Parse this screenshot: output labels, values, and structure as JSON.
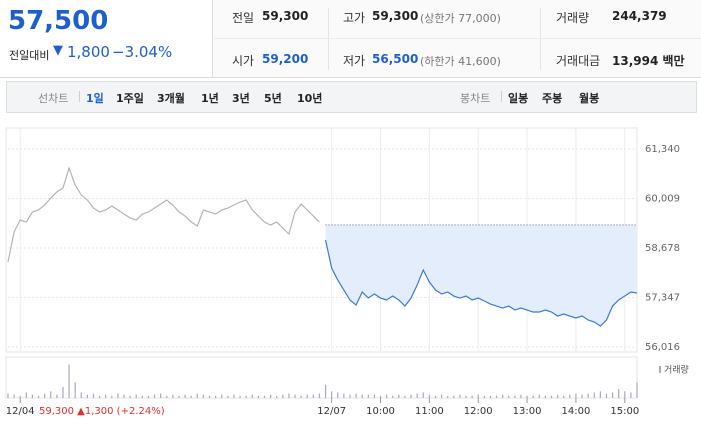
{
  "header": {
    "price": "57,500",
    "change_label": "전일대비",
    "change": "1,800",
    "change_rate": "−3.04%",
    "stats": [
      {
        "label": "전일",
        "value": "59,300"
      },
      {
        "label": "고가",
        "value": "59,300",
        "note": "(상한가 77,000)"
      },
      {
        "label": "거래량",
        "value": "244,379"
      },
      {
        "label": "시가",
        "value": "59,200"
      },
      {
        "label": "저가",
        "value": "56,500",
        "note": "(하한가 41,600)"
      },
      {
        "label": "거래대금",
        "value": "13,994 백만"
      }
    ]
  },
  "tabs": {
    "line_label": "선차트",
    "periods": [
      "1일",
      "1주일",
      "3개월",
      "1년",
      "3년",
      "5년",
      "10년"
    ],
    "candle_label": "봉차트",
    "candles": [
      "일봉",
      "주봉",
      "월봉"
    ]
  },
  "chart_data": [
    {
      "type": "line",
      "categories": [
        null,
        null,
        "12/04",
        null,
        null,
        null,
        null,
        null,
        null,
        null,
        null,
        null,
        null,
        null,
        null,
        null,
        null,
        null,
        null,
        null,
        null,
        null,
        null,
        null,
        null,
        null,
        null,
        null,
        null,
        null,
        null,
        null,
        null,
        null,
        null,
        null,
        null,
        null,
        null,
        null,
        null,
        null,
        null,
        null,
        null,
        null,
        null,
        null,
        null,
        null,
        null,
        null,
        null,
        "12/07",
        null,
        null,
        null,
        null,
        null,
        null,
        null,
        "10:00",
        null,
        null,
        null,
        null,
        null,
        null,
        null,
        "11:00",
        null,
        null,
        null,
        null,
        null,
        null,
        null,
        "12:00",
        null,
        null,
        null,
        null,
        null,
        null,
        null,
        "13:00",
        null,
        null,
        null,
        null,
        null,
        null,
        null,
        "14:00",
        null,
        null,
        null,
        null,
        null,
        null,
        null,
        "15:00",
        null,
        null
      ],
      "series": [
        {
          "color": "#b4b4b4",
          "values": [
            58301,
            59108,
            59431,
            59377,
            59646,
            59700,
            59834,
            60022,
            60184,
            60291,
            60829,
            60372,
            60103,
            59969,
            59753,
            59646,
            59700,
            59807,
            59700,
            59592,
            59485,
            59431,
            59592,
            59646,
            59753,
            59861,
            59969,
            59834,
            59646,
            59538,
            59377,
            59270,
            59700,
            59646,
            59592,
            59700,
            59753,
            59834,
            59915,
            59969,
            59700,
            59538,
            59377,
            59296,
            59377,
            59216,
            59054,
            59646,
            59861,
            59700,
            59538,
            59377,
            null,
            null,
            null,
            null,
            null,
            null,
            null,
            null,
            null,
            null,
            null,
            null,
            null,
            null,
            null,
            null,
            null,
            null,
            null,
            null,
            null,
            null,
            null,
            null,
            null,
            null,
            null,
            null,
            null,
            null,
            null,
            null,
            null,
            null,
            null,
            null,
            null,
            null,
            null,
            null,
            null,
            null,
            null,
            null,
            null,
            null,
            null,
            null,
            null,
            null,
            null,
            null
          ]
        },
        {
          "color": "#3a7bd5",
          "fill": "#e4edfb",
          "values": [
            null,
            null,
            null,
            null,
            null,
            null,
            null,
            null,
            null,
            null,
            null,
            null,
            null,
            null,
            null,
            null,
            null,
            null,
            null,
            null,
            null,
            null,
            null,
            null,
            null,
            null,
            null,
            null,
            null,
            null,
            null,
            null,
            null,
            null,
            null,
            null,
            null,
            null,
            null,
            null,
            null,
            null,
            null,
            null,
            null,
            null,
            null,
            null,
            null,
            null,
            null,
            null,
            58893,
            58140,
            57817,
            57549,
            57280,
            57145,
            57495,
            57333,
            57441,
            57333,
            57280,
            57387,
            57280,
            57118,
            57333,
            57683,
            58086,
            57764,
            57549,
            57441,
            57495,
            57387,
            57333,
            57387,
            57280,
            57333,
            57253,
            57172,
            57118,
            57064,
            57118,
            57011,
            57064,
            57011,
            56957,
            56957,
            57011,
            56957,
            56849,
            56903,
            56849,
            56796,
            56849,
            56742,
            56688,
            56580,
            56742,
            57118,
            57280,
            57387,
            57495,
            57468
          ]
        }
      ],
      "reference_value": 59300,
      "ylim": [
        55882,
        61905
      ],
      "yticks": [
        {
          "value": 56016,
          "label": "56,016"
        },
        {
          "value": 57347,
          "label": "57,347"
        },
        {
          "value": 58678,
          "label": "58,678"
        },
        {
          "value": 60009,
          "label": "60,009"
        },
        {
          "value": 61340,
          "label": "61,340"
        }
      ],
      "grid": true,
      "annotation": "59,300 ▲1,300 (+2.24%)"
    },
    {
      "type": "bar",
      "series": [
        {
          "name": "거래량",
          "color": "#aaa6c8",
          "values": [
            4,
            3,
            2,
            5,
            3,
            2,
            4,
            6,
            3,
            10,
            30,
            14,
            5,
            3,
            4,
            2,
            3,
            2,
            4,
            3,
            2,
            3,
            2,
            2,
            3,
            4,
            2,
            3,
            2,
            3,
            2,
            4,
            3,
            2,
            2,
            3,
            2,
            3,
            2,
            2,
            3,
            2,
            2,
            3,
            2,
            3,
            4,
            3,
            2,
            3,
            3,
            4,
            12,
            6,
            5,
            4,
            3,
            4,
            3,
            3,
            3,
            2,
            3,
            2,
            3,
            2,
            3,
            4,
            5,
            3,
            2,
            3,
            2,
            2,
            3,
            2,
            2,
            3,
            2,
            2,
            2,
            3,
            2,
            2,
            3,
            2,
            2,
            3,
            2,
            2,
            3,
            2,
            3,
            4,
            3,
            4,
            5,
            6,
            4,
            5,
            8,
            6,
            5,
            14
          ]
        }
      ],
      "ylim": [
        0,
        35
      ]
    }
  ]
}
